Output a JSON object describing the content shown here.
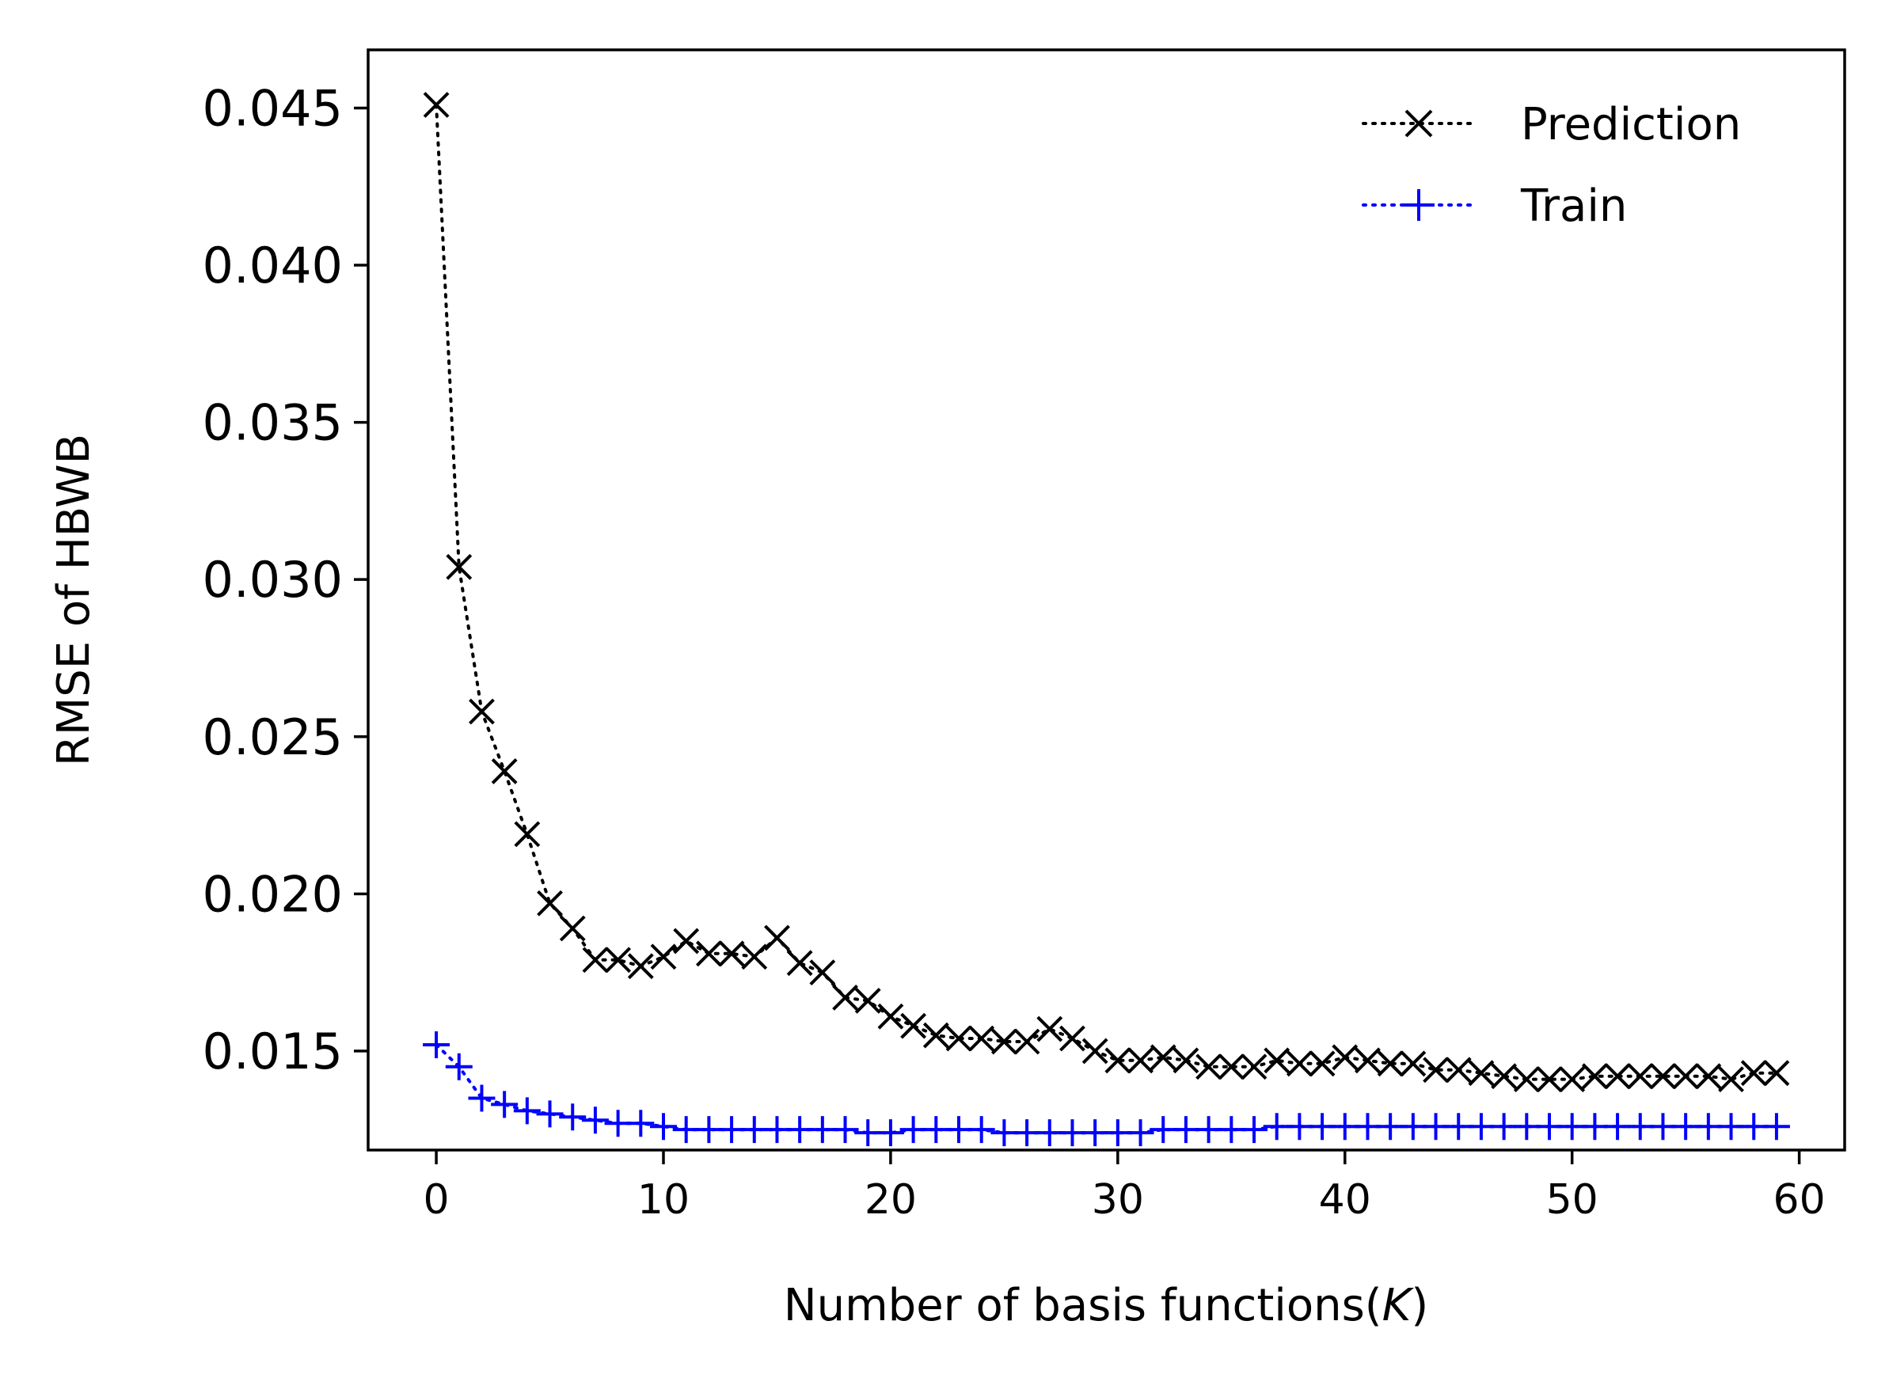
{
  "chart_data": {
    "type": "line",
    "title": "",
    "xlabel_main": "Number of basis functions(",
    "xlabel_var": "K",
    "xlabel_close": ")",
    "ylabel": "RMSE of HBWB",
    "xlim": [
      -3,
      62
    ],
    "ylim": [
      0.01185,
      0.04685
    ],
    "x_ticks": [
      0,
      10,
      20,
      30,
      40,
      50,
      60
    ],
    "x_tick_labels": [
      "0",
      "10",
      "20",
      "30",
      "40",
      "50",
      "60"
    ],
    "y_ticks": [
      0.015,
      0.02,
      0.025,
      0.03,
      0.035,
      0.04,
      0.045
    ],
    "y_tick_labels": [
      "0.015",
      "0.020",
      "0.025",
      "0.030",
      "0.035",
      "0.040",
      "0.045"
    ],
    "grid": false,
    "legend_position": "top-right",
    "series": [
      {
        "name": "Prediction",
        "color": "#000000",
        "marker": "x",
        "linestyle": "dotted",
        "x": [
          0,
          1,
          2,
          3,
          4,
          5,
          6,
          7,
          8,
          9,
          10,
          11,
          12,
          13,
          14,
          15,
          16,
          17,
          18,
          19,
          20,
          21,
          22,
          23,
          24,
          25,
          26,
          27,
          28,
          29,
          30,
          31,
          32,
          33,
          34,
          35,
          36,
          37,
          38,
          39,
          40,
          41,
          42,
          43,
          44,
          45,
          46,
          47,
          48,
          49,
          50,
          51,
          52,
          53,
          54,
          55,
          56,
          57,
          58,
          59
        ],
        "values": [
          0.0451,
          0.0304,
          0.0258,
          0.0239,
          0.0219,
          0.0197,
          0.0189,
          0.0179,
          0.0179,
          0.0177,
          0.018,
          0.0185,
          0.0181,
          0.0181,
          0.018,
          0.0186,
          0.0178,
          0.0175,
          0.0167,
          0.0166,
          0.0161,
          0.0158,
          0.0155,
          0.0154,
          0.0154,
          0.0153,
          0.0153,
          0.0157,
          0.0154,
          0.015,
          0.0147,
          0.0147,
          0.0148,
          0.0147,
          0.0145,
          0.0145,
          0.0145,
          0.0147,
          0.0146,
          0.0146,
          0.0148,
          0.0147,
          0.0146,
          0.0146,
          0.0144,
          0.0144,
          0.0143,
          0.0142,
          0.0141,
          0.0141,
          0.0141,
          0.0142,
          0.0142,
          0.0142,
          0.0142,
          0.0142,
          0.0142,
          0.0141,
          0.0143,
          0.0143
        ]
      },
      {
        "name": "Train",
        "color": "#0000ff",
        "marker": "+",
        "linestyle": "dotted",
        "x": [
          0,
          1,
          2,
          3,
          4,
          5,
          6,
          7,
          8,
          9,
          10,
          11,
          12,
          13,
          14,
          15,
          16,
          17,
          18,
          19,
          20,
          21,
          22,
          23,
          24,
          25,
          26,
          27,
          28,
          29,
          30,
          31,
          32,
          33,
          34,
          35,
          36,
          37,
          38,
          39,
          40,
          41,
          42,
          43,
          44,
          45,
          46,
          47,
          48,
          49,
          50,
          51,
          52,
          53,
          54,
          55,
          56,
          57,
          58,
          59
        ],
        "values": [
          0.0152,
          0.0145,
          0.0135,
          0.0133,
          0.0131,
          0.013,
          0.0129,
          0.0128,
          0.0127,
          0.0127,
          0.0126,
          0.0125,
          0.0125,
          0.0125,
          0.0125,
          0.0125,
          0.0125,
          0.0125,
          0.0125,
          0.0124,
          0.0124,
          0.0125,
          0.0125,
          0.0125,
          0.0125,
          0.0124,
          0.0124,
          0.0124,
          0.0124,
          0.0124,
          0.0124,
          0.0124,
          0.0125,
          0.0125,
          0.0125,
          0.0125,
          0.0125,
          0.0126,
          0.0126,
          0.0126,
          0.0126,
          0.0126,
          0.0126,
          0.0126,
          0.0126,
          0.0126,
          0.0126,
          0.0126,
          0.0126,
          0.0126,
          0.0126,
          0.0126,
          0.0126,
          0.0126,
          0.0126,
          0.0126,
          0.0126,
          0.0126,
          0.0126,
          0.0126
        ]
      }
    ]
  }
}
